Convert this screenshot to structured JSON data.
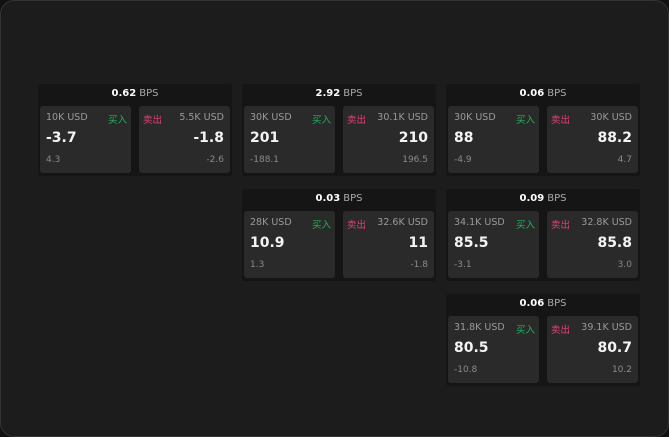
{
  "buy_label": "买入",
  "sell_label": "卖出",
  "unit": "BPS",
  "colors": {
    "buy": "#22b35e",
    "sell": "#e0407a"
  },
  "cards": [
    {
      "spread": "0.62",
      "buy": {
        "size": "10K USD",
        "price": "-3.7",
        "change": "4.3"
      },
      "sell": {
        "size": "5.5K USD",
        "price": "-1.8",
        "change": "-2.6"
      }
    },
    {
      "spread": "2.92",
      "buy": {
        "size": "30K USD",
        "price": "201",
        "change": "-188.1"
      },
      "sell": {
        "size": "30.1K USD",
        "price": "210",
        "change": "196.5"
      }
    },
    {
      "spread": "0.06",
      "buy": {
        "size": "30K USD",
        "price": "88",
        "change": "-4.9"
      },
      "sell": {
        "size": "30K USD",
        "price": "88.2",
        "change": "4.7"
      }
    },
    {
      "spread": "0.03",
      "buy": {
        "size": "28K USD",
        "price": "10.9",
        "change": "1.3"
      },
      "sell": {
        "size": "32.6K USD",
        "price": "11",
        "change": "-1.8"
      }
    },
    {
      "spread": "0.09",
      "buy": {
        "size": "34.1K USD",
        "price": "85.5",
        "change": "-3.1"
      },
      "sell": {
        "size": "32.8K USD",
        "price": "85.8",
        "change": "3.0"
      }
    },
    {
      "spread": "0.06",
      "buy": {
        "size": "31.8K USD",
        "price": "80.5",
        "change": "-10.8"
      },
      "sell": {
        "size": "39.1K USD",
        "price": "80.7",
        "change": "10.2"
      }
    }
  ]
}
